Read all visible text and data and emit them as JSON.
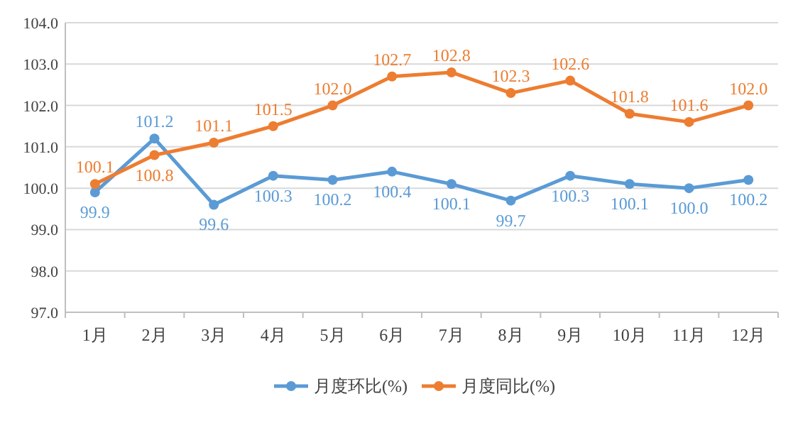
{
  "chart_data": {
    "type": "line",
    "categories": [
      "1月",
      "2月",
      "3月",
      "4月",
      "5月",
      "6月",
      "7月",
      "8月",
      "9月",
      "10月",
      "11月",
      "12月"
    ],
    "series": [
      {
        "name": "月度环比(%)",
        "color": "#5b9bd5",
        "values": [
          99.9,
          101.2,
          99.6,
          100.3,
          100.2,
          100.4,
          100.1,
          99.7,
          100.3,
          100.1,
          100.0,
          100.2
        ],
        "value_labels": [
          "99.9",
          "101.2",
          "99.6",
          "100.3",
          "100.2",
          "100.4",
          "100.1",
          "99.7",
          "100.3",
          "100.1",
          "100.0",
          "100.2"
        ]
      },
      {
        "name": "月度同比(%)",
        "color": "#ed7d31",
        "values": [
          100.1,
          100.8,
          101.1,
          101.5,
          102.0,
          102.7,
          102.8,
          102.3,
          102.6,
          101.8,
          101.6,
          102.0
        ],
        "value_labels": [
          "100.1",
          "100.8",
          "101.1",
          "101.5",
          "102.0",
          "102.7",
          "102.8",
          "102.3",
          "102.6",
          "101.8",
          "101.6",
          "102.0"
        ]
      }
    ],
    "ylim": [
      97,
      104
    ],
    "yticks": [
      {
        "value": 97,
        "label": "97.0"
      },
      {
        "value": 98,
        "label": "98.0"
      },
      {
        "value": 99,
        "label": "99.0"
      },
      {
        "value": 100,
        "label": "100.0"
      },
      {
        "value": 101,
        "label": "101.0"
      },
      {
        "value": 102,
        "label": "102.0"
      },
      {
        "value": 103,
        "label": "103.0"
      },
      {
        "value": 104,
        "label": "104.0"
      }
    ],
    "grid": "y",
    "legend": "bottom",
    "marker": "circle",
    "line_style": "solid"
  }
}
